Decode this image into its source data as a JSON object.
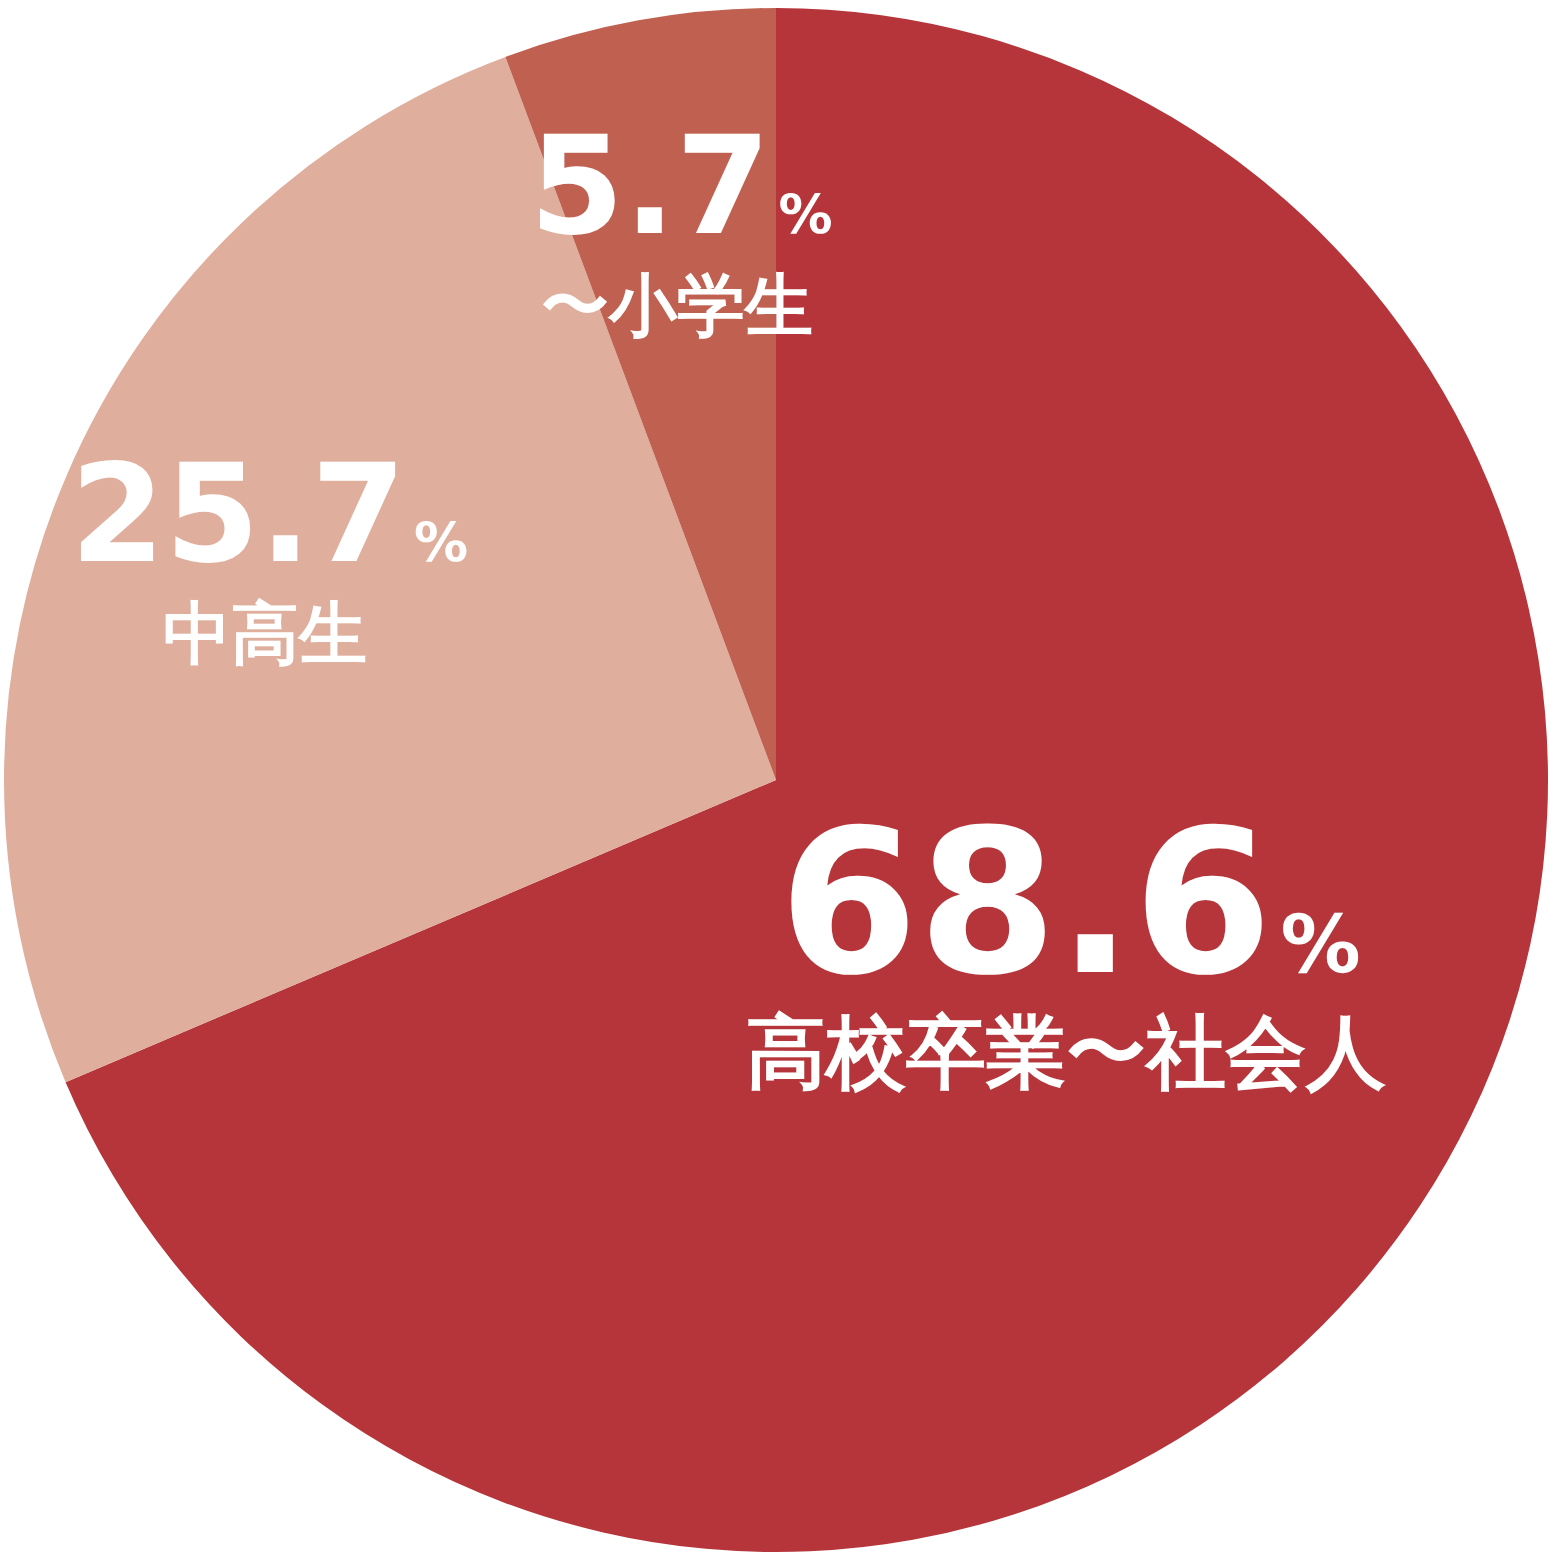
{
  "chart_data": {
    "type": "pie",
    "categories": [
      "高校卒業〜社会人",
      "中高生",
      "〜小学生"
    ],
    "values": [
      68.6,
      25.7,
      5.7
    ],
    "colors": [
      "#b5353a",
      "#dfae9c",
      "#c06050"
    ],
    "value_labels": [
      "68.6%",
      "25.7%",
      "5.7%"
    ],
    "legend": false
  }
}
